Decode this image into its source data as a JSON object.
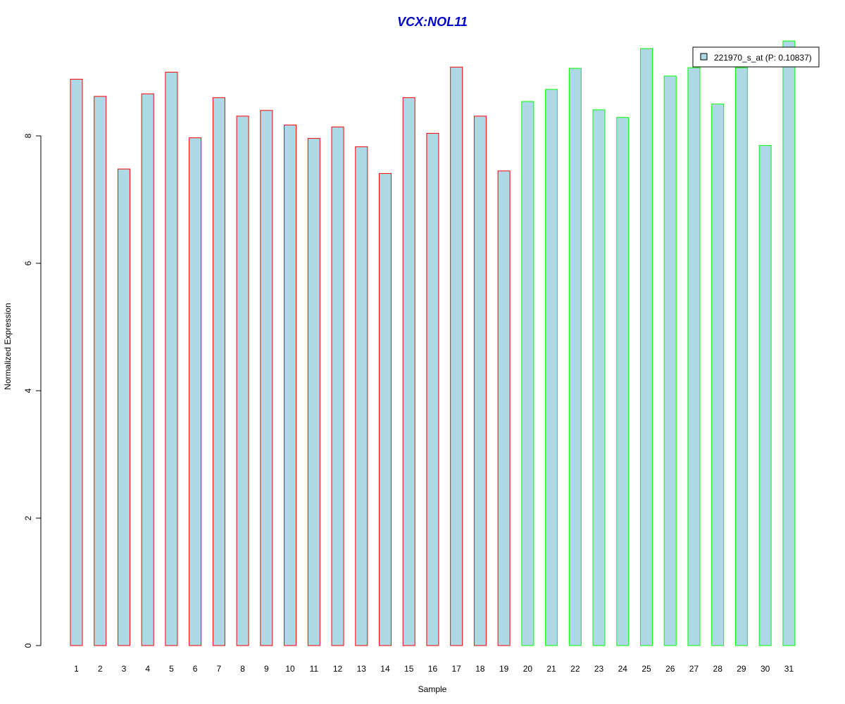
{
  "chart_data": {
    "type": "bar",
    "title": "VCX:NOL11",
    "xlabel": "Sample",
    "ylabel": "Normalized Expression",
    "ylim": [
      0,
      9.5
    ],
    "yticks": [
      "0",
      "2",
      "4",
      "6",
      "8"
    ],
    "categories": [
      "1",
      "2",
      "3",
      "4",
      "5",
      "6",
      "7",
      "8",
      "9",
      "10",
      "11",
      "12",
      "13",
      "14",
      "15",
      "16",
      "17",
      "18",
      "19",
      "20",
      "21",
      "22",
      "23",
      "24",
      "25",
      "26",
      "27",
      "28",
      "29",
      "30",
      "31"
    ],
    "values": [
      8.89,
      8.62,
      7.48,
      8.66,
      9.0,
      7.97,
      8.6,
      8.31,
      8.4,
      8.17,
      7.96,
      8.14,
      7.83,
      7.41,
      8.6,
      8.04,
      9.08,
      8.31,
      7.45,
      8.54,
      8.73,
      9.06,
      8.41,
      8.29,
      9.37,
      8.94,
      9.07,
      8.5,
      9.07,
      7.85,
      9.49
    ],
    "groups": [
      1,
      1,
      1,
      1,
      1,
      1,
      1,
      1,
      1,
      1,
      1,
      1,
      1,
      1,
      1,
      1,
      1,
      1,
      1,
      2,
      2,
      2,
      2,
      2,
      2,
      2,
      2,
      2,
      2,
      2,
      2
    ],
    "grid": false,
    "legend": {
      "placement": "top-right",
      "entries": [
        {
          "label": "221970_s_at (P: 0.10837)"
        }
      ]
    },
    "colors": {
      "fill": "#add8e6",
      "group1_border": "#ff0000",
      "group2_border": "#00ff00",
      "title": "#0000cd",
      "axis": "#000000"
    }
  }
}
